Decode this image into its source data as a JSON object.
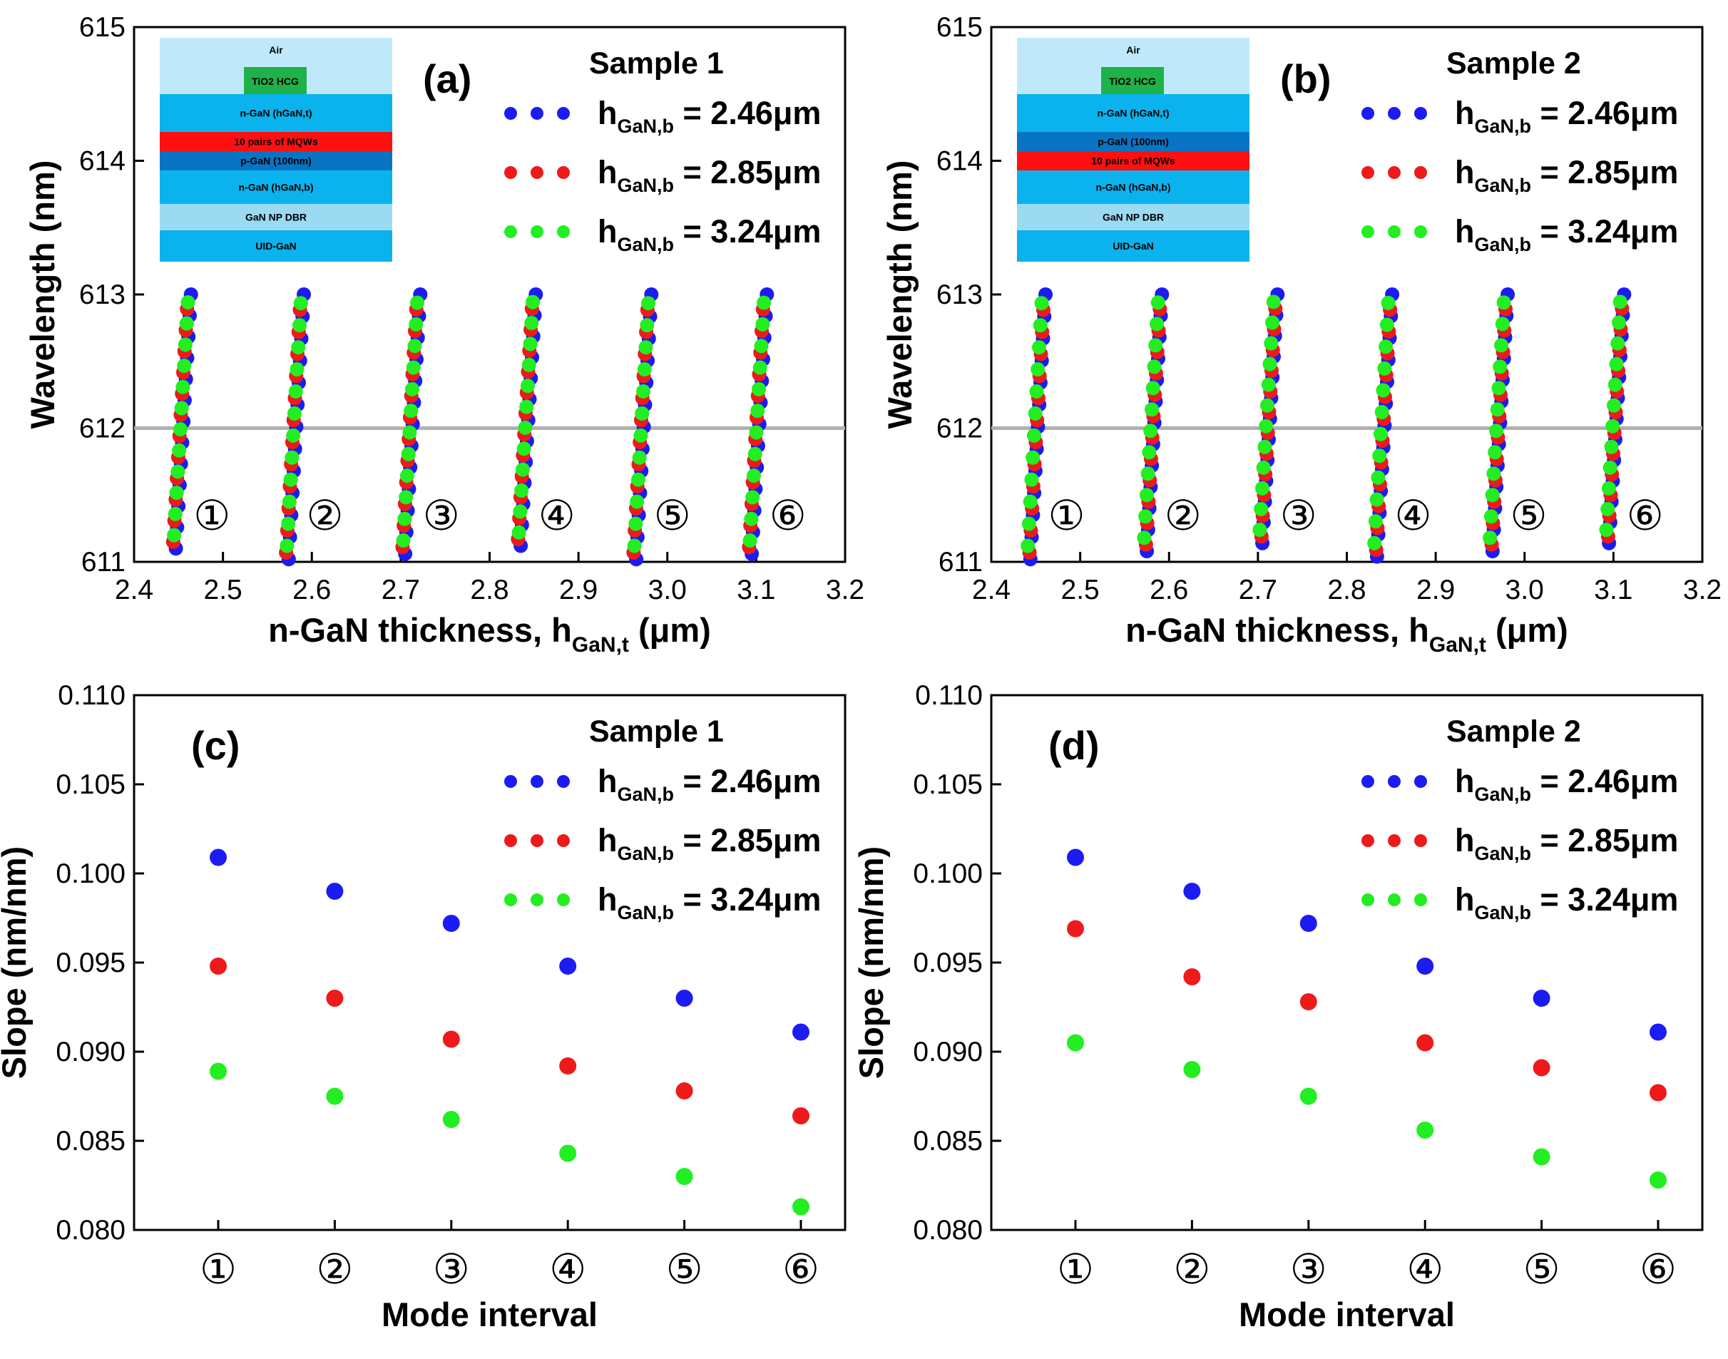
{
  "colors": {
    "blue": "#1c1cf2",
    "red": "#ee1a1a",
    "green": "#22ee22",
    "refline": "#b0b0b0"
  },
  "legend": {
    "h_prefix": "h",
    "h_sub": "GaN,b",
    "entries": [
      " = 2.46μm",
      " = 2.85μm",
      " = 3.24μm"
    ]
  },
  "mode_labels": [
    "①",
    "②",
    "③",
    "④",
    "⑤",
    "⑥"
  ],
  "structures": {
    "sample1": [
      "Air",
      "TiO2 HCG",
      "n-GaN (hGaN,t)",
      "10 pairs of MQWs",
      "p-GaN (100nm)",
      "n-GaN (hGaN,b)",
      "GaN NP DBR",
      "UID-GaN"
    ],
    "sample2": [
      "Air",
      "TiO2 HCG",
      "n-GaN (hGaN,t)",
      "p-GaN (100nm)",
      "10 pairs of MQWs",
      "n-GaN (hGaN,b)",
      "GaN NP DBR",
      "UID-GaN"
    ]
  },
  "chart_data": [
    {
      "panel": "(a)",
      "sample": "Sample 1",
      "type": "scatter",
      "xlabel": "n-GaN thickness, h",
      "xlabel_sub": "GaN,t",
      "xlabel_unit": " (μm)",
      "ylabel": "Wavelength (nm)",
      "xlim": [
        2.4,
        3.2
      ],
      "ylim": [
        611,
        615
      ],
      "xticks": [
        "2.4",
        "2.5",
        "2.6",
        "2.7",
        "2.8",
        "2.9",
        "3.0",
        "3.1",
        "3.2"
      ],
      "yticks": [
        "611",
        "612",
        "613",
        "614",
        "615"
      ],
      "reference_line_y": 612,
      "mode_start_x": [
        2.445,
        2.572,
        2.703,
        2.833,
        2.963,
        3.093
      ],
      "mode_start_y": [
        611.1,
        611.02,
        611.06,
        611.12,
        611.02,
        611.06
      ],
      "mode_delta_x": 0.017,
      "mode_end_y": 613.0,
      "series": [
        {
          "name": "h GaN,b = 2.46μm",
          "color": "blue",
          "offset": 0.002
        },
        {
          "name": "h GaN,b = 2.85μm",
          "color": "red",
          "offset": -0.001
        },
        {
          "name": "h GaN,b = 3.24μm",
          "color": "green",
          "offset": 0.0
        }
      ]
    },
    {
      "panel": "(b)",
      "sample": "Sample 2",
      "type": "scatter",
      "xlabel": "n-GaN thickness, h",
      "xlabel_sub": "GaN,t",
      "xlabel_unit": " (μm)",
      "ylabel": "Wavelength (nm)",
      "xlim": [
        2.4,
        3.2
      ],
      "ylim": [
        611,
        615
      ],
      "xticks": [
        "2.4",
        "2.5",
        "2.6",
        "2.7",
        "2.8",
        "2.9",
        "3.0",
        "3.1",
        "3.2"
      ],
      "yticks": [
        "611",
        "612",
        "613",
        "614",
        "615"
      ],
      "reference_line_y": 612,
      "mode_start_x": [
        2.442,
        2.573,
        2.703,
        2.832,
        2.962,
        3.093
      ],
      "mode_start_y": [
        611.02,
        611.08,
        611.14,
        611.04,
        611.08,
        611.14
      ],
      "mode_delta_x": 0.017,
      "mode_end_y": 613.0,
      "series": [
        {
          "name": "h GaN,b = 2.46μm",
          "color": "blue",
          "offset": 0.002
        },
        {
          "name": "h GaN,b = 2.85μm",
          "color": "red",
          "offset": 0.001
        },
        {
          "name": "h GaN,b = 3.24μm",
          "color": "green",
          "offset": -0.001
        }
      ]
    },
    {
      "panel": "(c)",
      "sample": "Sample 1",
      "type": "scatter",
      "xlabel": "Mode interval",
      "ylabel": "Slope (nm/nm)",
      "ylim": [
        0.08,
        0.11
      ],
      "yticks": [
        "0.080",
        "0.085",
        "0.090",
        "0.095",
        "0.100",
        "0.105",
        "0.110"
      ],
      "categories": [
        "①",
        "②",
        "③",
        "④",
        "⑤",
        "⑥"
      ],
      "series": [
        {
          "name": "h GaN,b = 2.46μm",
          "color": "blue",
          "values": [
            0.1009,
            0.099,
            0.0972,
            0.0948,
            0.093,
            0.0911
          ]
        },
        {
          "name": "h GaN,b = 2.85μm",
          "color": "red",
          "values": [
            0.0948,
            0.093,
            0.0907,
            0.0892,
            0.0878,
            0.0864
          ]
        },
        {
          "name": "h GaN,b = 3.24μm",
          "color": "green",
          "values": [
            0.0889,
            0.0875,
            0.0862,
            0.0843,
            0.083,
            0.0813
          ]
        }
      ]
    },
    {
      "panel": "(d)",
      "sample": "Sample 2",
      "type": "scatter",
      "xlabel": "Mode interval",
      "ylabel": "Slope (nm/nm)",
      "ylim": [
        0.08,
        0.11
      ],
      "yticks": [
        "0.080",
        "0.085",
        "0.090",
        "0.095",
        "0.100",
        "0.105",
        "0.110"
      ],
      "categories": [
        "①",
        "②",
        "③",
        "④",
        "⑤",
        "⑥"
      ],
      "series": [
        {
          "name": "h GaN,b = 2.46μm",
          "color": "blue",
          "values": [
            0.1009,
            0.099,
            0.0972,
            0.0948,
            0.093,
            0.0911
          ]
        },
        {
          "name": "h GaN,b = 2.85μm",
          "color": "red",
          "values": [
            0.0969,
            0.0942,
            0.0928,
            0.0905,
            0.0891,
            0.0877
          ]
        },
        {
          "name": "h GaN,b = 3.24μm",
          "color": "green",
          "values": [
            0.0905,
            0.089,
            0.0875,
            0.0856,
            0.0841,
            0.0828
          ]
        }
      ]
    }
  ]
}
